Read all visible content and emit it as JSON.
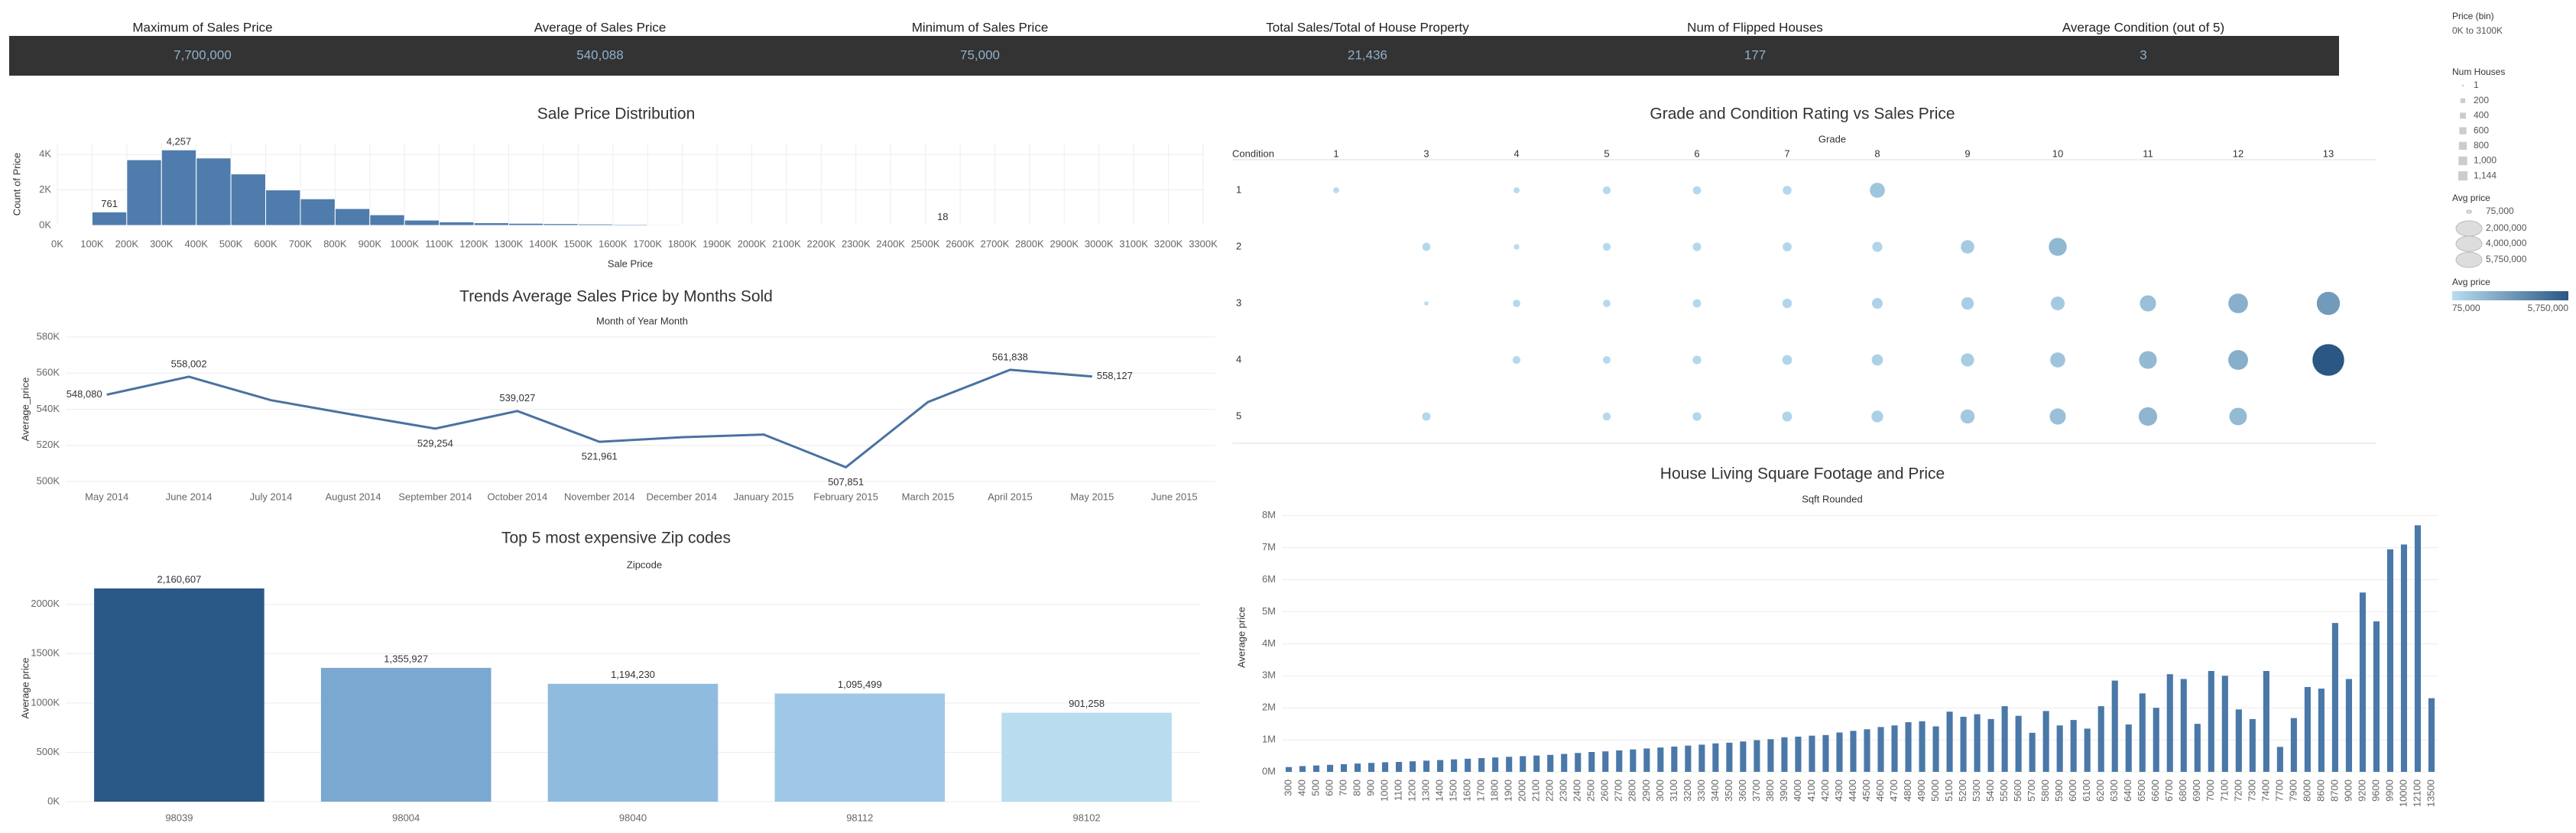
{
  "kpis": [
    {
      "label": "Maximum of Sales Price",
      "value": "7,700,000"
    },
    {
      "label": "Average of Sales Price",
      "value": "540,088"
    },
    {
      "label": "Minimum of Sales Price",
      "value": "75,000"
    },
    {
      "label": "Total Sales/Total of House Property",
      "value": "21,436"
    },
    {
      "label": "Num of Flipped Houses",
      "value": "177"
    },
    {
      "label": "Average Condition (out of 5)",
      "value": "3"
    }
  ],
  "filter": {
    "title": "Price (bin)",
    "value": "0K to 3100K"
  },
  "chart_data": [
    {
      "type": "histogram",
      "title": "Sale Price Distribution",
      "xlabel": "Sale Price",
      "ylabel": "Count of Price",
      "color": "#4f7cac",
      "bins": [
        0,
        100000,
        200000,
        300000,
        400000,
        500000,
        600000,
        700000,
        800000,
        900000,
        1000000,
        1100000,
        1200000,
        1300000,
        1400000,
        1500000,
        1600000,
        1700000,
        1800000,
        1900000,
        2000000,
        2100000,
        2200000,
        2300000,
        2400000,
        2500000,
        2600000,
        2700000,
        2800000,
        2900000,
        3000000,
        3100000,
        3200000,
        3300000
      ],
      "counts": [
        1,
        761,
        3700,
        4257,
        3800,
        2900,
        2000,
        1500,
        950,
        600,
        300,
        200,
        150,
        120,
        100,
        80,
        60,
        45,
        35,
        25,
        20,
        15,
        12,
        10,
        8,
        18,
        5,
        4,
        3,
        2,
        2,
        1,
        1
      ],
      "value_labels": [
        null,
        "761",
        null,
        "4,257",
        null,
        null,
        null,
        null,
        null,
        null,
        null,
        null,
        null,
        null,
        null,
        null,
        null,
        null,
        null,
        null,
        null,
        null,
        null,
        null,
        null,
        "18",
        null,
        null,
        null,
        null,
        null,
        null,
        null
      ],
      "xlim": [
        0,
        3300000
      ],
      "xticks": [
        {
          "value": 0,
          "label": "0K"
        },
        {
          "value": 100000,
          "label": "100K"
        },
        {
          "value": 200000,
          "label": "200K"
        },
        {
          "value": 300000,
          "label": "300K"
        },
        {
          "value": 400000,
          "label": "400K"
        },
        {
          "value": 500000,
          "label": "500K"
        },
        {
          "value": 600000,
          "label": "600K"
        },
        {
          "value": 700000,
          "label": "700K"
        },
        {
          "value": 800000,
          "label": "800K"
        },
        {
          "value": 900000,
          "label": "900K"
        },
        {
          "value": 1000000,
          "label": "1000K"
        },
        {
          "value": 1100000,
          "label": "1100K"
        },
        {
          "value": 1200000,
          "label": "1200K"
        },
        {
          "value": 1300000,
          "label": "1300K"
        },
        {
          "value": 1400000,
          "label": "1400K"
        },
        {
          "value": 1500000,
          "label": "1500K"
        },
        {
          "value": 1600000,
          "label": "1600K"
        },
        {
          "value": 1700000,
          "label": "1700K"
        },
        {
          "value": 1800000,
          "label": "1800K"
        },
        {
          "value": 1900000,
          "label": "1900K"
        },
        {
          "value": 2000000,
          "label": "2000K"
        },
        {
          "value": 2100000,
          "label": "2100K"
        },
        {
          "value": 2200000,
          "label": "2200K"
        },
        {
          "value": 2300000,
          "label": "2300K"
        },
        {
          "value": 2400000,
          "label": "2400K"
        },
        {
          "value": 2500000,
          "label": "2500K"
        },
        {
          "value": 2600000,
          "label": "2600K"
        },
        {
          "value": 2700000,
          "label": "2700K"
        },
        {
          "value": 2800000,
          "label": "2800K"
        },
        {
          "value": 2900000,
          "label": "2900K"
        },
        {
          "value": 3000000,
          "label": "3000K"
        },
        {
          "value": 3100000,
          "label": "3100K"
        },
        {
          "value": 3200000,
          "label": "3200K"
        },
        {
          "value": 3300000,
          "label": "3300K"
        }
      ],
      "ylim": [
        0,
        4650
      ],
      "yticks": [
        {
          "value": 0,
          "label": "0K"
        },
        {
          "value": 2000,
          "label": "2K"
        },
        {
          "value": 4000,
          "label": "4K"
        }
      ],
      "grid": true,
      "size_legend_title": "Num Houses",
      "size_legend": [
        1,
        200,
        400,
        600,
        800,
        {
          "value": 1000,
          "label": "1,000"
        },
        {
          "value": 1144,
          "label": "1,144"
        }
      ]
    },
    {
      "type": "line",
      "title": "Trends Average Sales Price by Months Sold",
      "subtitle": "Month of Year Month",
      "ylabel": "Average_price",
      "color": "#4a72a0",
      "categories": [
        "May 2014",
        "June 2014",
        "July 2014",
        "August 2014",
        "September 2014",
        "October 2014",
        "November 2014",
        "December 2014",
        "January 2015",
        "February 2015",
        "March 2015",
        "April 2015",
        "May 2015",
        "June 2015"
      ],
      "values": [
        548080,
        558002,
        545000,
        537000,
        529254,
        539027,
        521961,
        524500,
        526000,
        507851,
        544000,
        561838,
        558127,
        null
      ],
      "value_labels": [
        "548,080",
        "558,002",
        null,
        null,
        "529,254",
        "539,027",
        "521,961",
        null,
        null,
        "507,851",
        null,
        "561,838",
        "558,127",
        null
      ],
      "ylim": [
        500000,
        580000
      ],
      "yticks": [
        {
          "value": 500000,
          "label": "500K"
        },
        {
          "value": 520000,
          "label": "520K"
        },
        {
          "value": 540000,
          "label": "540K"
        },
        {
          "value": 560000,
          "label": "560K"
        },
        {
          "value": 580000,
          "label": "580K"
        }
      ],
      "grid": true
    },
    {
      "type": "bar",
      "title": "Top 5 most expensive Zip codes",
      "subtitle": "Zipcode",
      "ylabel": "Average price",
      "categories": [
        "98039",
        "98004",
        "98040",
        "98112",
        "98102"
      ],
      "values": [
        2160607,
        1355927,
        1194230,
        1095499,
        901258
      ],
      "value_labels": [
        "2,160,607",
        "1,355,927",
        "1,194,230",
        "1,095,499",
        "901,258"
      ],
      "colors": [
        "#2b5987",
        "#7aa8d0",
        "#8fbbdf",
        "#9ec8e6",
        "#b9dcef"
      ],
      "ylim": [
        0,
        2300000
      ],
      "yticks": [
        {
          "value": 0,
          "label": "0K"
        },
        {
          "value": 500000,
          "label": "500K"
        },
        {
          "value": 1000000,
          "label": "1000K"
        },
        {
          "value": 1500000,
          "label": "1500K"
        },
        {
          "value": 2000000,
          "label": "2000K"
        }
      ],
      "grid": true
    },
    {
      "type": "bubble",
      "title": "Grade and Condition Rating vs Sales Price",
      "subtitle": "Grade",
      "row_header": "Condition",
      "categories": [
        1,
        3,
        4,
        5,
        6,
        7,
        8,
        9,
        10,
        11,
        12,
        13
      ],
      "ycategories": [
        1,
        2,
        3,
        4,
        5
      ],
      "x": [
        1,
        4,
        5,
        6,
        7,
        8,
        3,
        4,
        5,
        6,
        7,
        8,
        9,
        10,
        3,
        4,
        5,
        6,
        7,
        8,
        9,
        10,
        11,
        12,
        13,
        4,
        5,
        6,
        7,
        8,
        9,
        10,
        11,
        12,
        13,
        3,
        5,
        6,
        7,
        8,
        9,
        10,
        11,
        12
      ],
      "y": [
        1,
        1,
        1,
        1,
        1,
        1,
        2,
        2,
        2,
        2,
        2,
        2,
        2,
        2,
        3,
        3,
        3,
        3,
        3,
        3,
        3,
        3,
        3,
        3,
        3,
        4,
        4,
        4,
        4,
        4,
        4,
        4,
        4,
        4,
        4,
        5,
        5,
        5,
        5,
        5,
        5,
        5,
        5,
        5
      ],
      "sizes": [
        142000,
        150000,
        250000,
        280000,
        330000,
        1100000,
        280000,
        130000,
        250000,
        300000,
        350000,
        450000,
        850000,
        1650000,
        90000,
        230000,
        230000,
        290000,
        390000,
        520000,
        720000,
        900000,
        1300000,
        2000000,
        2900000,
        250000,
        240000,
        310000,
        420000,
        580000,
        800000,
        1100000,
        1600000,
        2050000,
        5750000,
        300000,
        260000,
        320000,
        430000,
        640000,
        950000,
        1300000,
        1750000,
        1550000
      ],
      "color_range": [
        "#b9ddf1",
        "#2a5783"
      ],
      "size_legend_title": "Avg price",
      "size_legend": [
        {
          "value": 75000,
          "label": "75,000"
        },
        {
          "value": 2000000,
          "label": "2,000,000"
        },
        {
          "value": 4000000,
          "label": "4,000,000"
        },
        {
          "value": 5750000,
          "label": "5,750,000"
        }
      ],
      "color_legend_title": "Avg price",
      "color_legend": [
        {
          "value": 75000,
          "label": "75,000"
        },
        {
          "value": 5750000,
          "label": "5,750,000"
        }
      ]
    },
    {
      "type": "bar",
      "title": "House Living Square Footage and Price",
      "subtitle": "Sqft Rounded",
      "ylabel": "Average price",
      "color": "#4a78a8",
      "categories": [
        300,
        400,
        500,
        600,
        700,
        800,
        900,
        1000,
        1100,
        1200,
        1300,
        1400,
        1500,
        1600,
        1700,
        1800,
        1900,
        2000,
        2100,
        2200,
        2300,
        2400,
        2500,
        2600,
        2700,
        2800,
        2900,
        3000,
        3100,
        3200,
        3300,
        3400,
        3500,
        3600,
        3700,
        3800,
        3900,
        4000,
        4100,
        4200,
        4300,
        4400,
        4500,
        4600,
        4700,
        4800,
        4900,
        5000,
        5100,
        5200,
        5300,
        5400,
        5500,
        5600,
        5700,
        5800,
        5900,
        6000,
        6100,
        6200,
        6300,
        6400,
        6500,
        6600,
        6700,
        6800,
        6900,
        7000,
        7100,
        7200,
        7300,
        7400,
        7700,
        7900,
        8000,
        8600,
        8700,
        9000,
        9200,
        9600,
        9900,
        10000,
        12100,
        13500
      ],
      "values": [
        150000,
        180000,
        200000,
        220000,
        240000,
        260000,
        280000,
        300000,
        310000,
        330000,
        350000,
        370000,
        390000,
        410000,
        430000,
        450000,
        470000,
        490000,
        510000,
        530000,
        560000,
        590000,
        620000,
        640000,
        670000,
        700000,
        730000,
        760000,
        790000,
        820000,
        850000,
        890000,
        910000,
        950000,
        990000,
        1020000,
        1080000,
        1100000,
        1130000,
        1150000,
        1230000,
        1280000,
        1330000,
        1400000,
        1450000,
        1550000,
        1580000,
        1420000,
        1880000,
        1720000,
        1800000,
        1650000,
        2050000,
        1750000,
        1220000,
        1900000,
        1450000,
        1620000,
        1350000,
        2050000,
        2850000,
        1480000,
        2450000,
        2000000,
        3050000,
        2900000,
        1500000,
        3150000,
        3000000,
        1950000,
        1650000,
        3150000,
        780000,
        1680000,
        2650000,
        2600000,
        4650000,
        2900000,
        5600000,
        4700000,
        6950000,
        7100000,
        7700000,
        2300000
      ],
      "ylim": [
        0,
        8400000
      ],
      "yticks": [
        {
          "value": 0,
          "label": "0M"
        },
        {
          "value": 1000000,
          "label": "1M"
        },
        {
          "value": 2000000,
          "label": "2M"
        },
        {
          "value": 3000000,
          "label": "3M"
        },
        {
          "value": 4000000,
          "label": "4M"
        },
        {
          "value": 5000000,
          "label": "5M"
        },
        {
          "value": 6000000,
          "label": "6M"
        },
        {
          "value": 7000000,
          "label": "7M"
        },
        {
          "value": 8000000,
          "label": "8M"
        }
      ],
      "grid": true
    }
  ]
}
